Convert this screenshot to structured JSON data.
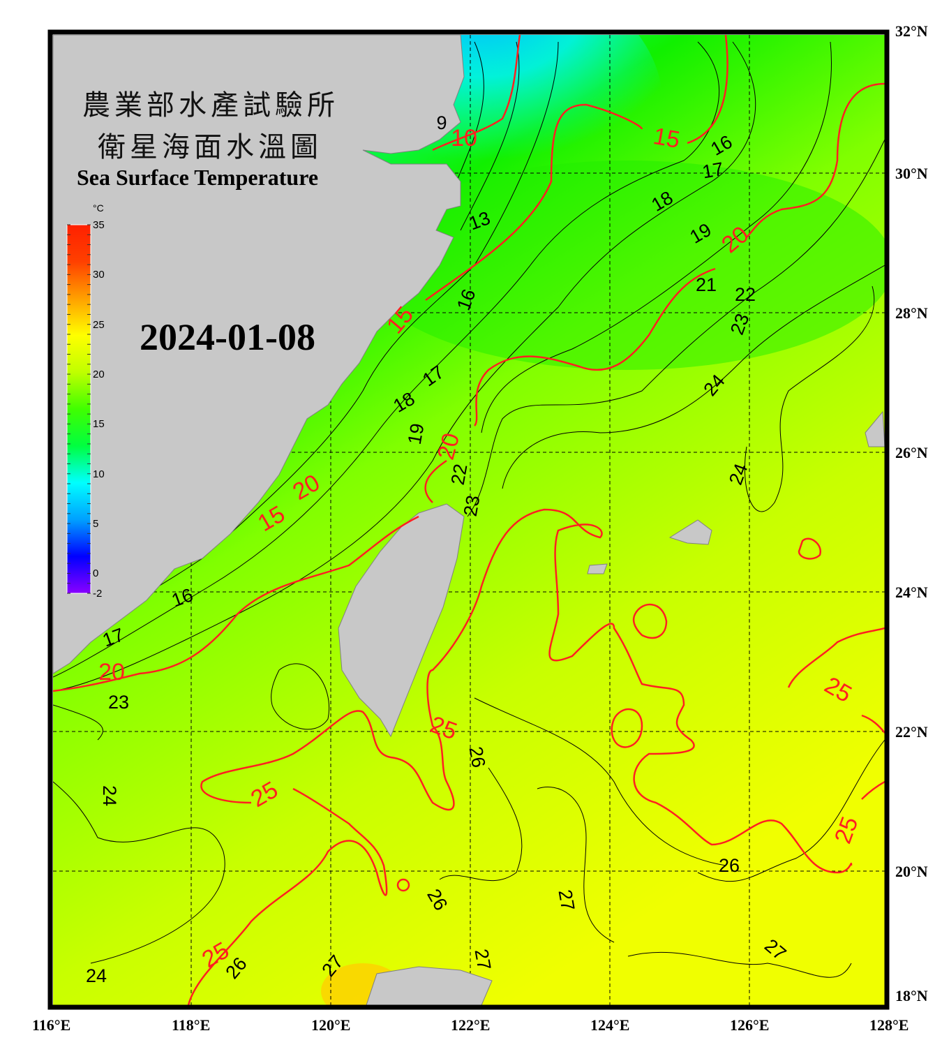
{
  "title": {
    "line1": "農業部水產試驗所",
    "line2": "衛星海面水溫圖",
    "english": "Sea Surface Temperature"
  },
  "date": "2024-01-08",
  "colorbar": {
    "unit": "°C",
    "range": [
      -2,
      35
    ],
    "ticks": [
      "35",
      "30",
      "25",
      "20",
      "15",
      "10",
      "5",
      "0",
      "-2"
    ],
    "colors": [
      "#8a00ff",
      "#0000ff",
      "#00a0ff",
      "#00ffff",
      "#00ff40",
      "#40ff00",
      "#c0ff00",
      "#ffff00",
      "#ffa000",
      "#ff4000",
      "#ff2000"
    ]
  },
  "axes": {
    "lon_labels": [
      "116°E",
      "118°E",
      "120°E",
      "122°E",
      "124°E",
      "126°E",
      "128°E"
    ],
    "lat_labels": [
      "32°N",
      "30°N",
      "28°N",
      "26°N",
      "24°N",
      "22°N",
      "20°N",
      "18°N"
    ],
    "lon_range": [
      116,
      128
    ],
    "lat_range": [
      18,
      32
    ],
    "grid": "dashed every 2°"
  },
  "contour_labels": {
    "major": [
      "10",
      "15",
      "20",
      "20",
      "15",
      "20",
      "25",
      "25",
      "25",
      "25",
      "25",
      "15",
      "20"
    ],
    "minor": [
      "9",
      "13",
      "16",
      "17",
      "18",
      "19",
      "21",
      "22",
      "23",
      "24",
      "16",
      "17",
      "18",
      "19",
      "22",
      "23",
      "24",
      "16",
      "17",
      "23",
      "24",
      "26",
      "26",
      "26",
      "27",
      "27",
      "27",
      "27",
      "24",
      "26"
    ]
  },
  "colors": {
    "land": "#c8c8c8",
    "frame": "#000000",
    "major_contour": "#ff2020",
    "minor_contour": "#000000"
  }
}
